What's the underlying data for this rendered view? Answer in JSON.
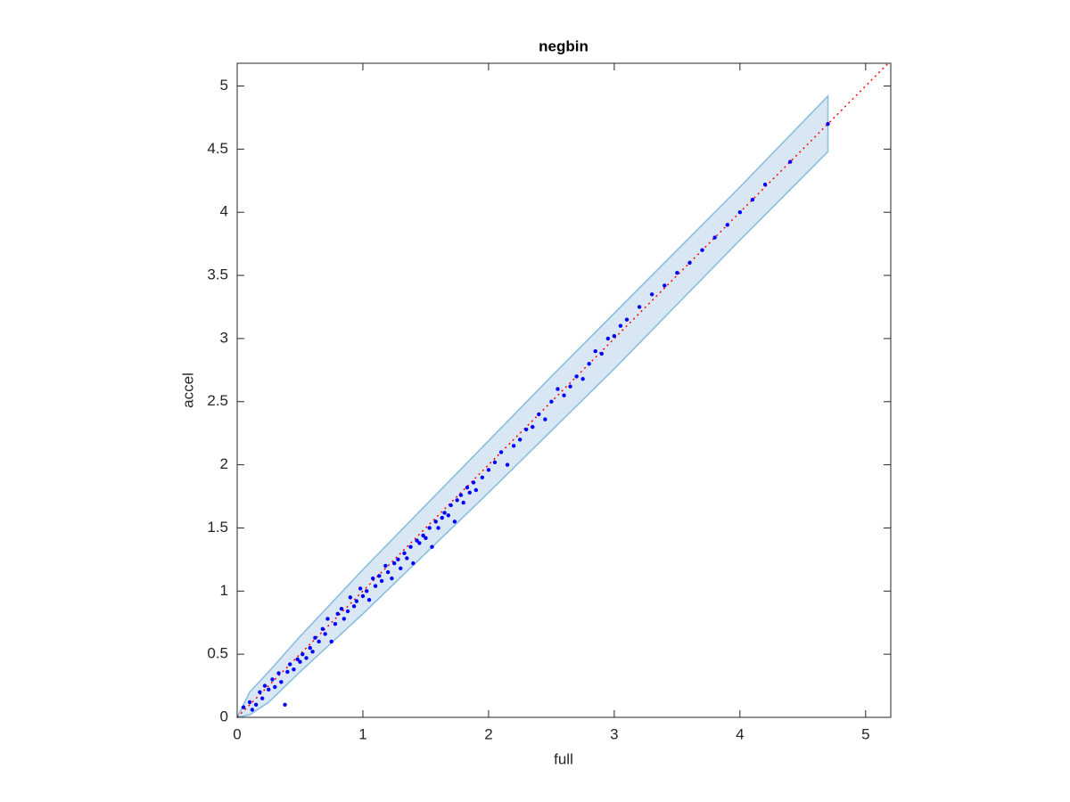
{
  "chart_data": {
    "type": "scatter",
    "title": "negbin",
    "xlabel": "full",
    "ylabel": "accel",
    "xlim": [
      0,
      5.2
    ],
    "ylim": [
      0,
      5.18
    ],
    "xticks": [
      0,
      1,
      2,
      3,
      4,
      5
    ],
    "yticks": [
      0,
      0.5,
      1,
      1.5,
      2,
      2.5,
      3,
      3.5,
      4,
      4.5,
      5
    ],
    "color": "#0000ff",
    "x": [
      0.05,
      0.1,
      0.12,
      0.15,
      0.18,
      0.2,
      0.22,
      0.25,
      0.28,
      0.3,
      0.33,
      0.35,
      0.38,
      0.4,
      0.42,
      0.45,
      0.48,
      0.5,
      0.52,
      0.55,
      0.58,
      0.6,
      0.62,
      0.65,
      0.68,
      0.7,
      0.72,
      0.75,
      0.78,
      0.8,
      0.83,
      0.85,
      0.88,
      0.9,
      0.93,
      0.95,
      0.98,
      1.0,
      1.03,
      1.05,
      1.08,
      1.1,
      1.13,
      1.15,
      1.18,
      1.2,
      1.23,
      1.25,
      1.28,
      1.3,
      1.33,
      1.35,
      1.38,
      1.4,
      1.43,
      1.45,
      1.48,
      1.5,
      1.53,
      1.55,
      1.58,
      1.6,
      1.63,
      1.65,
      1.68,
      1.7,
      1.73,
      1.75,
      1.78,
      1.8,
      1.83,
      1.85,
      1.88,
      1.9,
      1.95,
      2.0,
      2.05,
      2.1,
      2.15,
      2.2,
      2.25,
      2.3,
      2.35,
      2.4,
      2.45,
      2.5,
      2.55,
      2.6,
      2.65,
      2.7,
      2.75,
      2.8,
      2.85,
      2.9,
      2.95,
      3.0,
      3.05,
      3.1,
      3.2,
      3.3,
      3.4,
      3.5,
      3.6,
      3.7,
      3.8,
      3.9,
      4.0,
      4.1,
      4.2,
      4.4,
      4.7
    ],
    "y": [
      0.08,
      0.12,
      0.06,
      0.1,
      0.2,
      0.15,
      0.25,
      0.22,
      0.3,
      0.24,
      0.35,
      0.28,
      0.1,
      0.36,
      0.42,
      0.38,
      0.46,
      0.44,
      0.5,
      0.47,
      0.55,
      0.52,
      0.63,
      0.6,
      0.7,
      0.66,
      0.78,
      0.6,
      0.74,
      0.82,
      0.86,
      0.78,
      0.84,
      0.95,
      0.88,
      0.92,
      1.02,
      0.96,
      1.0,
      0.93,
      1.1,
      1.04,
      1.12,
      1.08,
      1.2,
      1.15,
      1.1,
      1.22,
      1.25,
      1.18,
      1.3,
      1.26,
      1.35,
      1.22,
      1.4,
      1.38,
      1.44,
      1.42,
      1.5,
      1.35,
      1.55,
      1.5,
      1.58,
      1.62,
      1.6,
      1.68,
      1.55,
      1.72,
      1.76,
      1.7,
      1.82,
      1.78,
      1.86,
      1.8,
      1.9,
      1.96,
      2.02,
      2.1,
      2.0,
      2.15,
      2.2,
      2.28,
      2.3,
      2.4,
      2.36,
      2.5,
      2.6,
      2.55,
      2.62,
      2.7,
      2.68,
      2.8,
      2.9,
      2.88,
      3.0,
      3.02,
      3.1,
      3.15,
      3.25,
      3.35,
      3.42,
      3.52,
      3.6,
      3.7,
      3.8,
      3.9,
      4.0,
      4.1,
      4.22,
      4.4,
      4.7
    ],
    "band": {
      "x": [
        0,
        0.1,
        0.25,
        0.5,
        1,
        1.5,
        2,
        2.5,
        3,
        3.5,
        4,
        4.7
      ],
      "upper": [
        0,
        0.2,
        0.36,
        0.64,
        1.17,
        1.68,
        2.19,
        2.7,
        3.2,
        3.7,
        4.2,
        4.92
      ],
      "lower": [
        0,
        0.02,
        0.12,
        0.36,
        0.82,
        1.3,
        1.78,
        2.27,
        2.76,
        3.27,
        3.78,
        4.48
      ],
      "color": "#d9e7f4",
      "edge_color": "#8dbfdf"
    },
    "reference_line": {
      "x": [
        0,
        5.18
      ],
      "y": [
        0,
        5.18
      ],
      "color": "#ff0000"
    }
  }
}
